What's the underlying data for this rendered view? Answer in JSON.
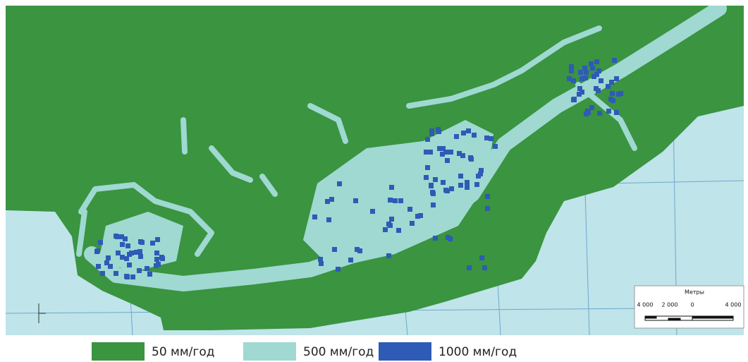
{
  "legend": [
    {
      "label": "50 мм/год",
      "color": "#3a9440"
    },
    {
      "label": "500 мм/год",
      "color": "#9fd9d2"
    },
    {
      "label": "1000 мм/год",
      "color": "#2e5bb5"
    }
  ],
  "scale_bar": {
    "title": "Метры",
    "labels": [
      "4 000",
      "2 000",
      "0",
      "4 000"
    ]
  }
}
